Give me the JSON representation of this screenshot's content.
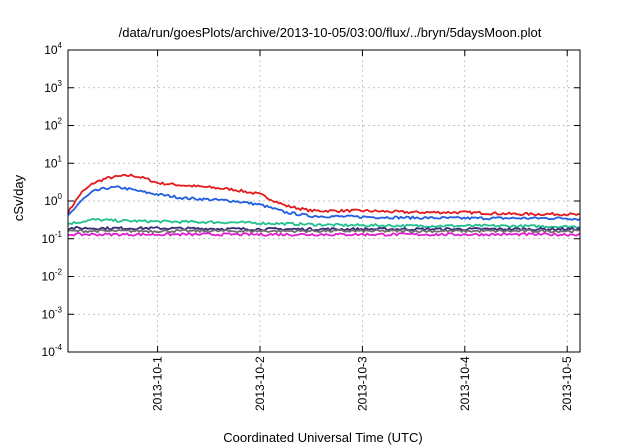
{
  "chart_data": {
    "type": "line",
    "title": "/data/run/goesPlots/archive/2013-10-05/03:00/flux/../bryn/5daysMoon.plot",
    "xlabel": "Coordinated Universal Time (UTC)",
    "ylabel": "cSv/day",
    "yscale": "log",
    "ylim": [
      0.0001,
      10000
    ],
    "xlim": [
      "2013-09-30T03:00",
      "2013-10-05T03:00"
    ],
    "grid": true,
    "legend": "none",
    "yticks": [
      {
        "base": "10",
        "exp": "-4",
        "value": 0.0001
      },
      {
        "base": "10",
        "exp": "-3",
        "value": 0.001
      },
      {
        "base": "10",
        "exp": "-2",
        "value": 0.01
      },
      {
        "base": "10",
        "exp": "-1",
        "value": 0.1
      },
      {
        "base": "10",
        "exp": "0",
        "value": 1
      },
      {
        "base": "10",
        "exp": "1",
        "value": 10
      },
      {
        "base": "10",
        "exp": "2",
        "value": 100
      },
      {
        "base": "10",
        "exp": "3",
        "value": 1000
      },
      {
        "base": "10",
        "exp": "4",
        "value": 10000
      }
    ],
    "xticks": [
      {
        "label": "2013-10-1",
        "date": "2013-10-01T00:00"
      },
      {
        "label": "2013-10-2",
        "date": "2013-10-02T00:00"
      },
      {
        "label": "2013-10-3",
        "date": "2013-10-03T00:00"
      },
      {
        "label": "2013-10-4",
        "date": "2013-10-04T00:00"
      },
      {
        "label": "2013-10-5",
        "date": "2013-10-05T00:00"
      }
    ],
    "series": [
      {
        "color": "#e31a1c",
        "x": [
          "2013-09-30T03:00",
          "2013-09-30T06:00",
          "2013-09-30T09:00",
          "2013-09-30T12:00",
          "2013-09-30T15:00",
          "2013-09-30T18:00",
          "2013-09-30T21:00",
          "2013-10-01T00:00",
          "2013-10-01T06:00",
          "2013-10-01T12:00",
          "2013-10-01T18:00",
          "2013-10-02T00:00",
          "2013-10-02T06:00",
          "2013-10-02T12:00",
          "2013-10-03T00:00",
          "2013-10-03T12:00",
          "2013-10-04T00:00",
          "2013-10-04T12:00",
          "2013-10-05T00:00",
          "2013-10-05T03:00"
        ],
        "y": [
          0.5,
          1.6,
          3.0,
          4.0,
          4.5,
          4.8,
          4.0,
          3.0,
          2.6,
          2.3,
          2.0,
          1.5,
          0.75,
          0.55,
          0.55,
          0.5,
          0.5,
          0.45,
          0.45,
          0.42
        ]
      },
      {
        "color": "#1f5fe0",
        "x": [
          "2013-09-30T03:00",
          "2013-09-30T06:00",
          "2013-09-30T09:00",
          "2013-09-30T12:00",
          "2013-09-30T15:00",
          "2013-09-30T18:00",
          "2013-09-30T21:00",
          "2013-10-01T00:00",
          "2013-10-01T06:00",
          "2013-10-01T12:00",
          "2013-10-01T18:00",
          "2013-10-02T00:00",
          "2013-10-02T06:00",
          "2013-10-02T12:00",
          "2013-10-03T00:00",
          "2013-10-03T12:00",
          "2013-10-04T00:00",
          "2013-10-04T12:00",
          "2013-10-05T00:00",
          "2013-10-05T03:00"
        ],
        "y": [
          0.4,
          1.0,
          1.8,
          2.2,
          2.3,
          2.0,
          1.7,
          1.5,
          1.2,
          1.1,
          1.0,
          0.8,
          0.5,
          0.4,
          0.38,
          0.36,
          0.35,
          0.35,
          0.35,
          0.33
        ]
      },
      {
        "color": "#20c090",
        "x": [
          "2013-09-30T03:00",
          "2013-09-30T09:00",
          "2013-09-30T15:00",
          "2013-09-30T21:00",
          "2013-10-01T06:00",
          "2013-10-01T18:00",
          "2013-10-02T06:00",
          "2013-10-02T18:00",
          "2013-10-03T12:00",
          "2013-10-04T06:00",
          "2013-10-05T00:00",
          "2013-10-05T03:00"
        ],
        "y": [
          0.25,
          0.32,
          0.3,
          0.29,
          0.28,
          0.27,
          0.25,
          0.23,
          0.22,
          0.22,
          0.21,
          0.21
        ]
      },
      {
        "color": "#3a2a7a",
        "x": [
          "2013-09-30T03:00",
          "2013-10-01T00:00",
          "2013-10-02T00:00",
          "2013-10-03T00:00",
          "2013-10-04T00:00",
          "2013-10-05T03:00"
        ],
        "y": [
          0.19,
          0.19,
          0.18,
          0.18,
          0.18,
          0.18
        ]
      },
      {
        "color": "#707070",
        "x": [
          "2013-09-30T03:00",
          "2013-10-01T00:00",
          "2013-10-02T00:00",
          "2013-10-03T00:00",
          "2013-10-04T00:00",
          "2013-10-05T03:00"
        ],
        "y": [
          0.16,
          0.16,
          0.16,
          0.16,
          0.16,
          0.16
        ]
      },
      {
        "color": "#e020d0",
        "x": [
          "2013-09-30T03:00",
          "2013-10-01T00:00",
          "2013-10-02T00:00",
          "2013-10-03T00:00",
          "2013-10-04T00:00",
          "2013-10-05T03:00"
        ],
        "y": [
          0.13,
          0.13,
          0.13,
          0.13,
          0.13,
          0.13
        ]
      }
    ]
  }
}
